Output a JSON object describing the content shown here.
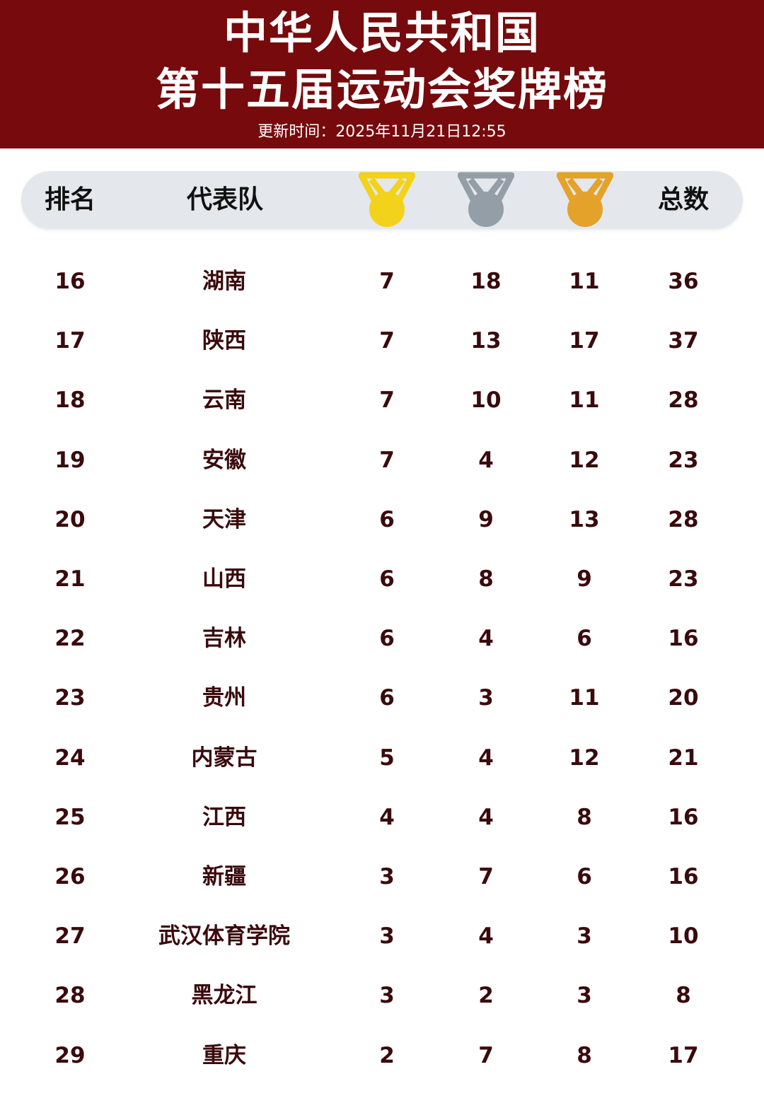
{
  "header": {
    "title_line1": "中华人民共和国",
    "title_line2": "第十五届运动会奖牌榜",
    "updated": "更新时间：2025年11月21日12:55"
  },
  "table": {
    "columns": {
      "rank": "排名",
      "team": "代表队",
      "gold_icon": "gold-medal-icon",
      "silver_icon": "silver-medal-icon",
      "bronze_icon": "bronze-medal-icon",
      "total": "总数"
    },
    "colors": {
      "banner": "#760a0c",
      "gold": "#f2d21a",
      "silver": "#939ea6",
      "bronze": "#e4a22a",
      "text": "#3a0a0c"
    },
    "rows": [
      {
        "rank": "16",
        "team": "湖南",
        "gold": "7",
        "silver": "18",
        "bronze": "11",
        "total": "36"
      },
      {
        "rank": "17",
        "team": "陕西",
        "gold": "7",
        "silver": "13",
        "bronze": "17",
        "total": "37"
      },
      {
        "rank": "18",
        "team": "云南",
        "gold": "7",
        "silver": "10",
        "bronze": "11",
        "total": "28"
      },
      {
        "rank": "19",
        "team": "安徽",
        "gold": "7",
        "silver": "4",
        "bronze": "12",
        "total": "23"
      },
      {
        "rank": "20",
        "team": "天津",
        "gold": "6",
        "silver": "9",
        "bronze": "13",
        "total": "28"
      },
      {
        "rank": "21",
        "team": "山西",
        "gold": "6",
        "silver": "8",
        "bronze": "9",
        "total": "23"
      },
      {
        "rank": "22",
        "team": "吉林",
        "gold": "6",
        "silver": "4",
        "bronze": "6",
        "total": "16"
      },
      {
        "rank": "23",
        "team": "贵州",
        "gold": "6",
        "silver": "3",
        "bronze": "11",
        "total": "20"
      },
      {
        "rank": "24",
        "team": "内蒙古",
        "gold": "5",
        "silver": "4",
        "bronze": "12",
        "total": "21"
      },
      {
        "rank": "25",
        "team": "江西",
        "gold": "4",
        "silver": "4",
        "bronze": "8",
        "total": "16"
      },
      {
        "rank": "26",
        "team": "新疆",
        "gold": "3",
        "silver": "7",
        "bronze": "6",
        "total": "16"
      },
      {
        "rank": "27",
        "team": "武汉体育学院",
        "gold": "3",
        "silver": "4",
        "bronze": "3",
        "total": "10"
      },
      {
        "rank": "28",
        "team": "黑龙江",
        "gold": "3",
        "silver": "2",
        "bronze": "3",
        "total": "8"
      },
      {
        "rank": "29",
        "team": "重庆",
        "gold": "2",
        "silver": "7",
        "bronze": "8",
        "total": "17"
      }
    ]
  }
}
